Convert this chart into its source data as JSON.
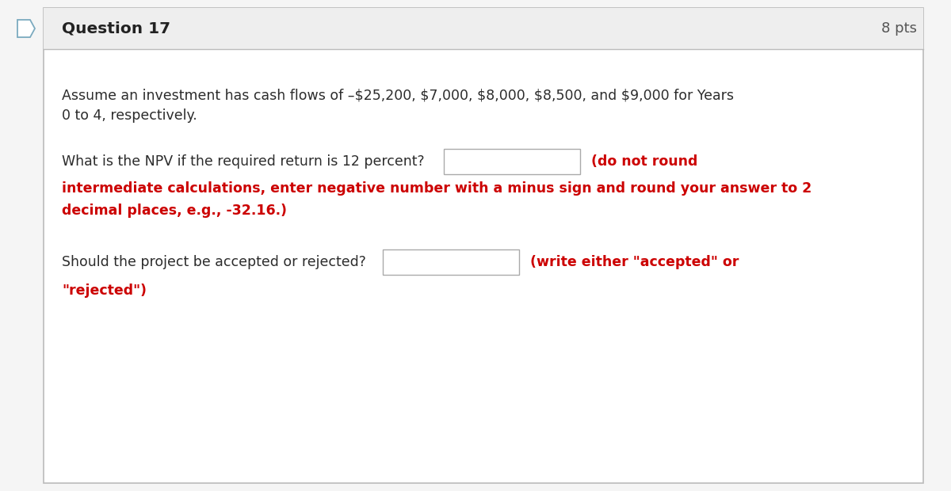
{
  "title": "Question 17",
  "pts": "8 pts",
  "bg_color": "#f5f5f5",
  "card_bg": "#ffffff",
  "header_bg": "#eeeeee",
  "border_color": "#bbbbbb",
  "icon_stroke": "#7baabf",
  "title_color": "#222222",
  "pts_color": "#555555",
  "body_text_color": "#2c2c2c",
  "red_color": "#cc0000",
  "line1": "Assume an investment has cash flows of –$25,200, $7,000, $8,000, $8,500, and $9,000 for Years",
  "line2": "0 to 4, respectively.",
  "q1_text": "What is the NPV if the required return is 12 percent?",
  "q1_red": "(do not round",
  "q1_red2": "intermediate calculations, enter negative number with a minus sign and round your answer to 2",
  "q1_red3": "decimal places, e.g., -32.16.)",
  "q2_text": "Should the project be accepted or rejected?",
  "q2_red": "(write either \"accepted\" or",
  "q2_red2": "\"rejected\")",
  "font_size_title": 14.5,
  "font_size_pts": 13,
  "font_size_body": 12.5,
  "font_size_red": 12.5
}
